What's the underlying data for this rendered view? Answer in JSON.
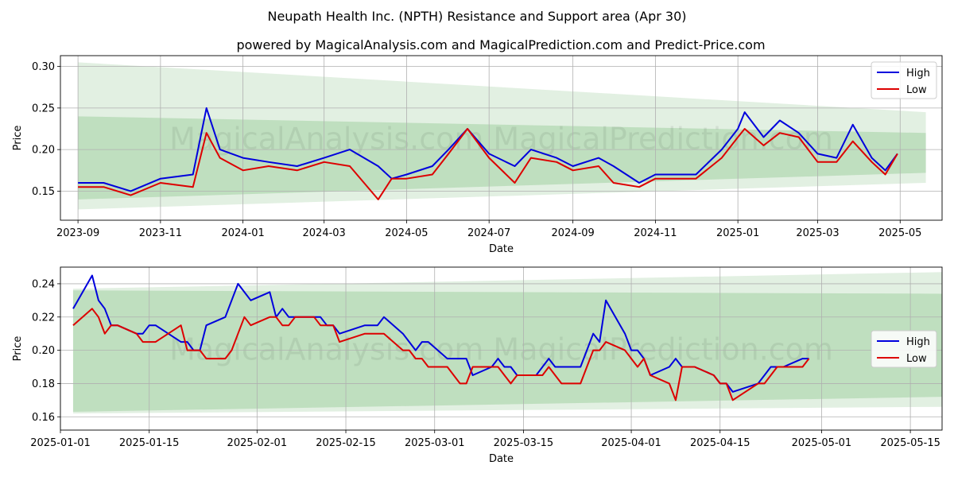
{
  "title": "Neupath Health Inc. (NPTH) Resistance and Support area (Apr 30)",
  "subtitle": "powered by MagicalAnalysis.com and MagicalPrediction.com and Predict-Price.com",
  "watermark": "MagicalAnalysis.com    MagicalPrediction.com",
  "colors": {
    "high": "#0000dd",
    "low": "#dd0000",
    "band_outer": "#d8ebd8",
    "band_inner": "#a8d4a8"
  },
  "chart_data": [
    {
      "type": "line",
      "xlabel": "Date",
      "ylabel": "Price",
      "xlim": [
        "2023-08-19",
        "2025-06-01"
      ],
      "ylim": [
        0.115,
        0.313
      ],
      "x_ticks": [
        "2023-09",
        "2023-11",
        "2024-01",
        "2024-03",
        "2024-05",
        "2024-07",
        "2024-09",
        "2024-11",
        "2025-01",
        "2025-03",
        "2025-05"
      ],
      "y_ticks": [
        "0.15",
        "0.20",
        "0.25",
        "0.30"
      ],
      "grid": true,
      "legend": "top-right",
      "series": [
        {
          "name": "High",
          "color": "#0000dd",
          "x": [
            "2023-09-01",
            "2023-09-20",
            "2023-10-10",
            "2023-11-01",
            "2023-11-25",
            "2023-12-05",
            "2023-12-15",
            "2024-01-01",
            "2024-01-20",
            "2024-02-10",
            "2024-03-01",
            "2024-03-20",
            "2024-04-10",
            "2024-04-20",
            "2024-05-01",
            "2024-05-20",
            "2024-06-01",
            "2024-06-15",
            "2024-07-01",
            "2024-07-20",
            "2024-08-01",
            "2024-08-20",
            "2024-09-01",
            "2024-09-20",
            "2024-10-01",
            "2024-10-20",
            "2024-11-01",
            "2024-11-20",
            "2024-12-01",
            "2024-12-20",
            "2025-01-01",
            "2025-01-06",
            "2025-01-20",
            "2025-02-01",
            "2025-02-15",
            "2025-03-01",
            "2025-03-15",
            "2025-03-27",
            "2025-04-10",
            "2025-04-20",
            "2025-04-29"
          ],
          "values": [
            0.16,
            0.16,
            0.15,
            0.165,
            0.17,
            0.25,
            0.2,
            0.19,
            0.185,
            0.18,
            0.19,
            0.2,
            0.18,
            0.165,
            0.17,
            0.18,
            0.2,
            0.225,
            0.195,
            0.18,
            0.2,
            0.19,
            0.18,
            0.19,
            0.18,
            0.16,
            0.17,
            0.17,
            0.17,
            0.2,
            0.225,
            0.245,
            0.215,
            0.235,
            0.22,
            0.195,
            0.19,
            0.23,
            0.19,
            0.175,
            0.195
          ]
        },
        {
          "name": "Low",
          "color": "#dd0000",
          "x": [
            "2023-09-01",
            "2023-09-20",
            "2023-10-10",
            "2023-11-01",
            "2023-11-25",
            "2023-12-05",
            "2023-12-15",
            "2024-01-01",
            "2024-01-20",
            "2024-02-10",
            "2024-03-01",
            "2024-03-20",
            "2024-04-10",
            "2024-04-20",
            "2024-05-01",
            "2024-05-20",
            "2024-06-01",
            "2024-06-15",
            "2024-07-01",
            "2024-07-20",
            "2024-08-01",
            "2024-08-20",
            "2024-09-01",
            "2024-09-20",
            "2024-10-01",
            "2024-10-20",
            "2024-11-01",
            "2024-11-20",
            "2024-12-01",
            "2024-12-20",
            "2025-01-01",
            "2025-01-06",
            "2025-01-20",
            "2025-02-01",
            "2025-02-15",
            "2025-03-01",
            "2025-03-15",
            "2025-03-27",
            "2025-04-10",
            "2025-04-20",
            "2025-04-29"
          ],
          "values": [
            0.155,
            0.155,
            0.145,
            0.16,
            0.155,
            0.22,
            0.19,
            0.175,
            0.18,
            0.175,
            0.185,
            0.18,
            0.14,
            0.165,
            0.165,
            0.17,
            0.195,
            0.225,
            0.19,
            0.16,
            0.19,
            0.185,
            0.175,
            0.18,
            0.16,
            0.155,
            0.165,
            0.165,
            0.165,
            0.19,
            0.215,
            0.225,
            0.205,
            0.22,
            0.215,
            0.185,
            0.185,
            0.21,
            0.185,
            0.17,
            0.195
          ]
        }
      ],
      "bands": {
        "x": [
          "2023-09-01",
          "2025-05-20"
        ],
        "outer_upper": [
          0.305,
          0.245
        ],
        "outer_lower": [
          0.128,
          0.16
        ],
        "inner_upper": [
          0.24,
          0.22
        ],
        "inner_lower": [
          0.14,
          0.172
        ]
      }
    },
    {
      "type": "line",
      "xlabel": "Date",
      "ylabel": "Price",
      "xlim": [
        "2025-01-01",
        "2025-05-20"
      ],
      "ylim": [
        0.152,
        0.25
      ],
      "x_ticks": [
        "2025-01-01",
        "2025-01-15",
        "2025-02-01",
        "2025-02-15",
        "2025-03-01",
        "2025-03-15",
        "2025-04-01",
        "2025-04-15",
        "2025-05-01",
        "2025-05-15"
      ],
      "y_ticks": [
        "0.16",
        "0.18",
        "0.20",
        "0.22",
        "0.24"
      ],
      "grid": true,
      "legend": "right",
      "series": [
        {
          "name": "High",
          "color": "#0000dd",
          "x": [
            "2025-01-03",
            "2025-01-06",
            "2025-01-07",
            "2025-01-08",
            "2025-01-09",
            "2025-01-10",
            "2025-01-13",
            "2025-01-14",
            "2025-01-15",
            "2025-01-16",
            "2025-01-20",
            "2025-01-21",
            "2025-01-22",
            "2025-01-23",
            "2025-01-24",
            "2025-01-27",
            "2025-01-28",
            "2025-01-29",
            "2025-01-30",
            "2025-01-31",
            "2025-02-03",
            "2025-02-04",
            "2025-02-05",
            "2025-02-06",
            "2025-02-07",
            "2025-02-10",
            "2025-02-11",
            "2025-02-12",
            "2025-02-13",
            "2025-02-14",
            "2025-02-18",
            "2025-02-19",
            "2025-02-20",
            "2025-02-21",
            "2025-02-24",
            "2025-02-25",
            "2025-02-26",
            "2025-02-27",
            "2025-02-28",
            "2025-03-03",
            "2025-03-04",
            "2025-03-05",
            "2025-03-06",
            "2025-03-07",
            "2025-03-10",
            "2025-03-11",
            "2025-03-12",
            "2025-03-13",
            "2025-03-14",
            "2025-03-17",
            "2025-03-18",
            "2025-03-19",
            "2025-03-20",
            "2025-03-21",
            "2025-03-24",
            "2025-03-25",
            "2025-03-26",
            "2025-03-27",
            "2025-03-28",
            "2025-03-31",
            "2025-04-01",
            "2025-04-02",
            "2025-04-03",
            "2025-04-04",
            "2025-04-07",
            "2025-04-08",
            "2025-04-09",
            "2025-04-10",
            "2025-04-11",
            "2025-04-14",
            "2025-04-15",
            "2025-04-16",
            "2025-04-17",
            "2025-04-21",
            "2025-04-22",
            "2025-04-23",
            "2025-04-24",
            "2025-04-25",
            "2025-04-28",
            "2025-04-29"
          ],
          "values": [
            0.225,
            0.245,
            0.23,
            0.225,
            0.215,
            0.215,
            0.21,
            0.21,
            0.215,
            0.215,
            0.205,
            0.205,
            0.2,
            0.2,
            0.215,
            0.22,
            0.23,
            0.24,
            0.235,
            0.23,
            0.235,
            0.22,
            0.225,
            0.22,
            0.22,
            0.22,
            0.22,
            0.215,
            0.215,
            0.21,
            0.215,
            0.215,
            0.215,
            0.22,
            0.21,
            0.205,
            0.2,
            0.205,
            0.205,
            0.195,
            0.195,
            0.195,
            0.195,
            0.185,
            0.19,
            0.195,
            0.19,
            0.19,
            0.185,
            0.185,
            0.19,
            0.195,
            0.19,
            0.19,
            0.19,
            0.2,
            0.21,
            0.205,
            0.23,
            0.21,
            0.2,
            0.2,
            0.195,
            0.185,
            0.19,
            0.195,
            0.19,
            0.19,
            0.19,
            0.185,
            0.18,
            0.18,
            0.175,
            0.18,
            0.185,
            0.19,
            0.19,
            0.19,
            0.195,
            0.195
          ]
        },
        {
          "name": "Low",
          "color": "#dd0000",
          "x": [
            "2025-01-03",
            "2025-01-06",
            "2025-01-07",
            "2025-01-08",
            "2025-01-09",
            "2025-01-10",
            "2025-01-13",
            "2025-01-14",
            "2025-01-15",
            "2025-01-16",
            "2025-01-20",
            "2025-01-21",
            "2025-01-22",
            "2025-01-23",
            "2025-01-24",
            "2025-01-27",
            "2025-01-28",
            "2025-01-29",
            "2025-01-30",
            "2025-01-31",
            "2025-02-03",
            "2025-02-04",
            "2025-02-05",
            "2025-02-06",
            "2025-02-07",
            "2025-02-10",
            "2025-02-11",
            "2025-02-12",
            "2025-02-13",
            "2025-02-14",
            "2025-02-18",
            "2025-02-19",
            "2025-02-20",
            "2025-02-21",
            "2025-02-24",
            "2025-02-25",
            "2025-02-26",
            "2025-02-27",
            "2025-02-28",
            "2025-03-03",
            "2025-03-04",
            "2025-03-05",
            "2025-03-06",
            "2025-03-07",
            "2025-03-10",
            "2025-03-11",
            "2025-03-12",
            "2025-03-13",
            "2025-03-14",
            "2025-03-17",
            "2025-03-18",
            "2025-03-19",
            "2025-03-20",
            "2025-03-21",
            "2025-03-24",
            "2025-03-25",
            "2025-03-26",
            "2025-03-27",
            "2025-03-28",
            "2025-03-31",
            "2025-04-01",
            "2025-04-02",
            "2025-04-03",
            "2025-04-04",
            "2025-04-07",
            "2025-04-08",
            "2025-04-09",
            "2025-04-10",
            "2025-04-11",
            "2025-04-14",
            "2025-04-15",
            "2025-04-16",
            "2025-04-17",
            "2025-04-21",
            "2025-04-22",
            "2025-04-23",
            "2025-04-24",
            "2025-04-25",
            "2025-04-28",
            "2025-04-29"
          ],
          "values": [
            0.215,
            0.225,
            0.22,
            0.21,
            0.215,
            0.215,
            0.21,
            0.205,
            0.205,
            0.205,
            0.215,
            0.2,
            0.2,
            0.2,
            0.195,
            0.195,
            0.2,
            0.21,
            0.22,
            0.215,
            0.22,
            0.22,
            0.215,
            0.215,
            0.22,
            0.22,
            0.215,
            0.215,
            0.215,
            0.205,
            0.21,
            0.21,
            0.21,
            0.21,
            0.2,
            0.2,
            0.195,
            0.195,
            0.19,
            0.19,
            0.185,
            0.18,
            0.18,
            0.19,
            0.19,
            0.19,
            0.185,
            0.18,
            0.185,
            0.185,
            0.185,
            0.19,
            0.185,
            0.18,
            0.18,
            0.19,
            0.2,
            0.2,
            0.205,
            0.2,
            0.195,
            0.19,
            0.195,
            0.185,
            0.18,
            0.17,
            0.19,
            0.19,
            0.19,
            0.185,
            0.18,
            0.18,
            0.17,
            0.18,
            0.18,
            0.185,
            0.19,
            0.19,
            0.19,
            0.195
          ]
        }
      ],
      "bands": {
        "x": [
          "2025-01-03",
          "2025-05-20"
        ],
        "outer_upper": [
          0.237,
          0.247
        ],
        "outer_lower": [
          0.162,
          0.166
        ],
        "inner_upper": [
          0.236,
          0.234
        ],
        "inner_lower": [
          0.163,
          0.172
        ]
      }
    }
  ]
}
